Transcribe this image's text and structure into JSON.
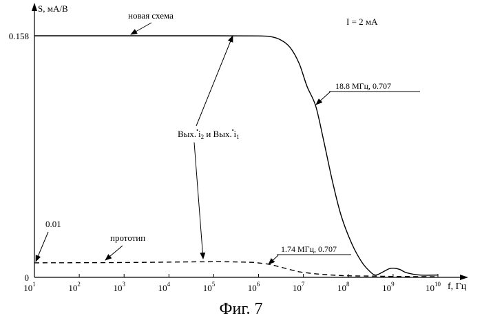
{
  "chart_data": {
    "type": "line",
    "x_scale": "log",
    "xlim": [
      10,
      10000000000
    ],
    "ylim": [
      0,
      0.158
    ],
    "xlabel": "f, Гц",
    "ylabel": "S, мА/В",
    "y_ticks": [
      {
        "value": 0,
        "label": "0"
      },
      {
        "value": 0.158,
        "label": "0.158"
      }
    ],
    "x_ticks": [
      {
        "value": 10,
        "base": "10",
        "exp": "1"
      },
      {
        "value": 100,
        "base": "10",
        "exp": "2"
      },
      {
        "value": 1000,
        "base": "10",
        "exp": "3"
      },
      {
        "value": 10000,
        "base": "10",
        "exp": "4"
      },
      {
        "value": 100000,
        "base": "10",
        "exp": "5"
      },
      {
        "value": 1000000,
        "base": "10",
        "exp": "6"
      },
      {
        "value": 10000000,
        "base": "10",
        "exp": "7"
      },
      {
        "value": 100000000,
        "base": "10",
        "exp": "8"
      },
      {
        "value": 1000000000,
        "base": "10",
        "exp": "9"
      },
      {
        "value": 10000000000,
        "base": "10",
        "exp": "10"
      }
    ],
    "series": [
      {
        "name": "новая схема",
        "style": "solid",
        "x": [
          10,
          1000,
          100000,
          1000000,
          1800000,
          3000000,
          5000000,
          8000000,
          12000000,
          18800000,
          28000000,
          45000000,
          70000000,
          120000000,
          200000000,
          300000000,
          400000000,
          550000000,
          800000000,
          1000000000,
          1400000000,
          2000000000,
          4000000000,
          10000000000
        ],
        "y": [
          0.158,
          0.158,
          0.158,
          0.1579,
          0.1575,
          0.1555,
          0.1505,
          0.14,
          0.125,
          0.112,
          0.09,
          0.062,
          0.04,
          0.022,
          0.01,
          0.004,
          0.0015,
          0.003,
          0.0055,
          0.006,
          0.0052,
          0.003,
          0.0015,
          0.0015
        ]
      },
      {
        "name": "прототип",
        "style": "dashed",
        "x": [
          10,
          1000,
          100000,
          700000,
          1000000,
          1740000,
          3000000,
          6000000,
          10000000,
          30000000,
          100000000,
          400000000,
          1000000000,
          10000000000
        ],
        "y": [
          0.0095,
          0.0097,
          0.0102,
          0.0098,
          0.0094,
          0.0085,
          0.0068,
          0.0045,
          0.0032,
          0.0018,
          0.001,
          0.0008,
          0.0006,
          0.0004
        ]
      }
    ],
    "annotations": {
      "condition": "I = 2 мА",
      "new_label": "новая схема",
      "proto_label": "прототип",
      "point_high": "18.8 МГц, 0.707",
      "point_low": "1.74 МГц, 0.707",
      "outputs_main": "Вых.",
      "outputs_i": "i",
      "outputs_sub2": "2",
      "outputs_and": " и Вых.",
      "outputs_sub1": "1",
      "outputs_dot": "•",
      "point_001": "0.01"
    }
  },
  "figure": {
    "caption": "Фиг. 7"
  },
  "colors": {
    "ink": "#000000",
    "background": "#ffffff"
  }
}
